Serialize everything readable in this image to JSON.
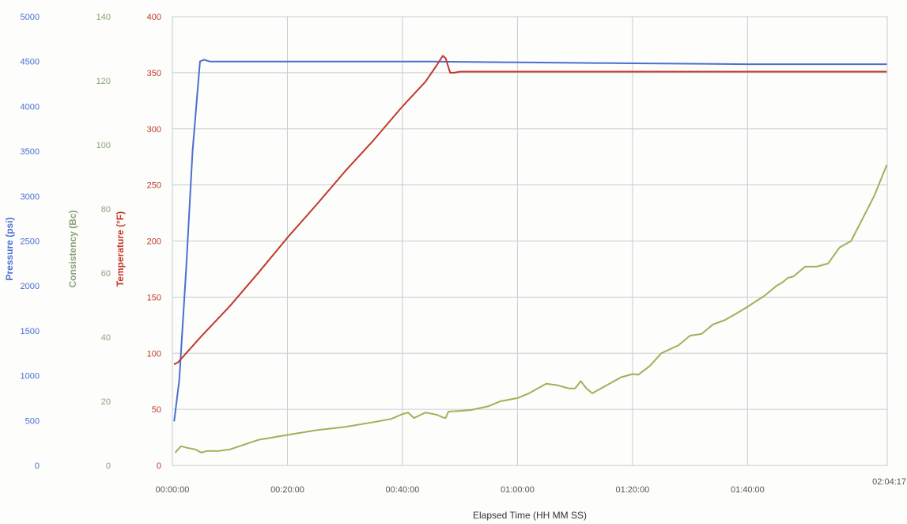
{
  "chart_data": {
    "type": "line",
    "xlabel": "Elapsed Time (HH MM SS)",
    "x_ticks": [
      "00:00:00",
      "00:20:00",
      "00:40:00",
      "01:00:00",
      "01:20:00",
      "01:40:00",
      "02:04:17"
    ],
    "x_tick_minutes": [
      0,
      20,
      40,
      60,
      80,
      100,
      124.28
    ],
    "xlim": [
      0,
      124.28
    ],
    "grid": true,
    "axes": [
      {
        "key": "pressure",
        "label": "Pressure (psi)",
        "color": "#4a6fd0",
        "ylim": [
          0,
          5000
        ],
        "ticks": [
          "0",
          "500",
          "1000",
          "1500",
          "2000",
          "2500",
          "3000",
          "3500",
          "4000",
          "4500",
          "5000"
        ]
      },
      {
        "key": "consistency",
        "label": "Consistency (Bc)",
        "color": "#8aa37a",
        "ylim": [
          0,
          140
        ],
        "ticks": [
          "0",
          "20",
          "40",
          "60",
          "80",
          "100",
          "120",
          "140"
        ]
      },
      {
        "key": "temperature",
        "label": "Temperature (°F)",
        "color": "#c0392b",
        "ylim": [
          0,
          400
        ],
        "ticks": [
          "0",
          "50",
          "100",
          "150",
          "200",
          "250",
          "300",
          "350",
          "400"
        ]
      }
    ],
    "series": [
      {
        "axis": "pressure",
        "color": "#4a6fd0",
        "x": [
          0.3,
          1.2,
          2.4,
          3.5,
          4.8,
          5.5,
          6.5,
          12,
          25,
          45,
          60,
          80,
          100,
          124.2
        ],
        "values": [
          490,
          950,
          2200,
          3500,
          4500,
          4520,
          4500,
          4500,
          4500,
          4500,
          4490,
          4480,
          4470,
          4470
        ]
      },
      {
        "axis": "temperature",
        "color": "#c0392b",
        "x": [
          0.3,
          1,
          5,
          10,
          15,
          20,
          25,
          30,
          35,
          40,
          44,
          46,
          47,
          47.5,
          48.3,
          49,
          50,
          60,
          80,
          100,
          124.2
        ],
        "values": [
          90,
          92,
          115,
          142,
          172,
          203,
          232,
          262,
          290,
          320,
          342,
          357,
          365,
          363,
          350,
          350,
          351,
          351,
          351,
          351,
          351
        ]
      },
      {
        "axis": "consistency",
        "color": "#9bb35a",
        "x": [
          0.5,
          1.5,
          2.5,
          4,
          5,
          6,
          8,
          10,
          15,
          20,
          25,
          30,
          35,
          38,
          40,
          41,
          42,
          44,
          46,
          47,
          47.5,
          48,
          50,
          52,
          55,
          57,
          60,
          62,
          63.5,
          65,
          67,
          69,
          70,
          71,
          72,
          73,
          74,
          76,
          78,
          80,
          81,
          83,
          85,
          88,
          90,
          92,
          94,
          96,
          98,
          100,
          103,
          105,
          106,
          107,
          108,
          110,
          112,
          114,
          116,
          118,
          120,
          122,
          124.2
        ],
        "values": [
          4,
          6,
          5.5,
          5,
          4,
          4.5,
          4.5,
          5,
          8,
          9.5,
          11,
          12,
          13.5,
          14.5,
          16,
          16.5,
          14.8,
          16.5,
          15.8,
          15,
          14.8,
          16.8,
          17,
          17.3,
          18.5,
          20,
          21,
          22.5,
          24,
          25.5,
          25,
          24,
          24,
          26.3,
          24,
          22.5,
          23.5,
          25.5,
          27.5,
          28.5,
          28.3,
          31,
          35,
          37.5,
          40.5,
          41,
          44,
          45.3,
          47.3,
          49.5,
          53,
          56,
          57,
          58.5,
          59,
          62,
          62,
          63,
          68,
          70,
          77,
          84,
          93.7
        ]
      }
    ]
  }
}
